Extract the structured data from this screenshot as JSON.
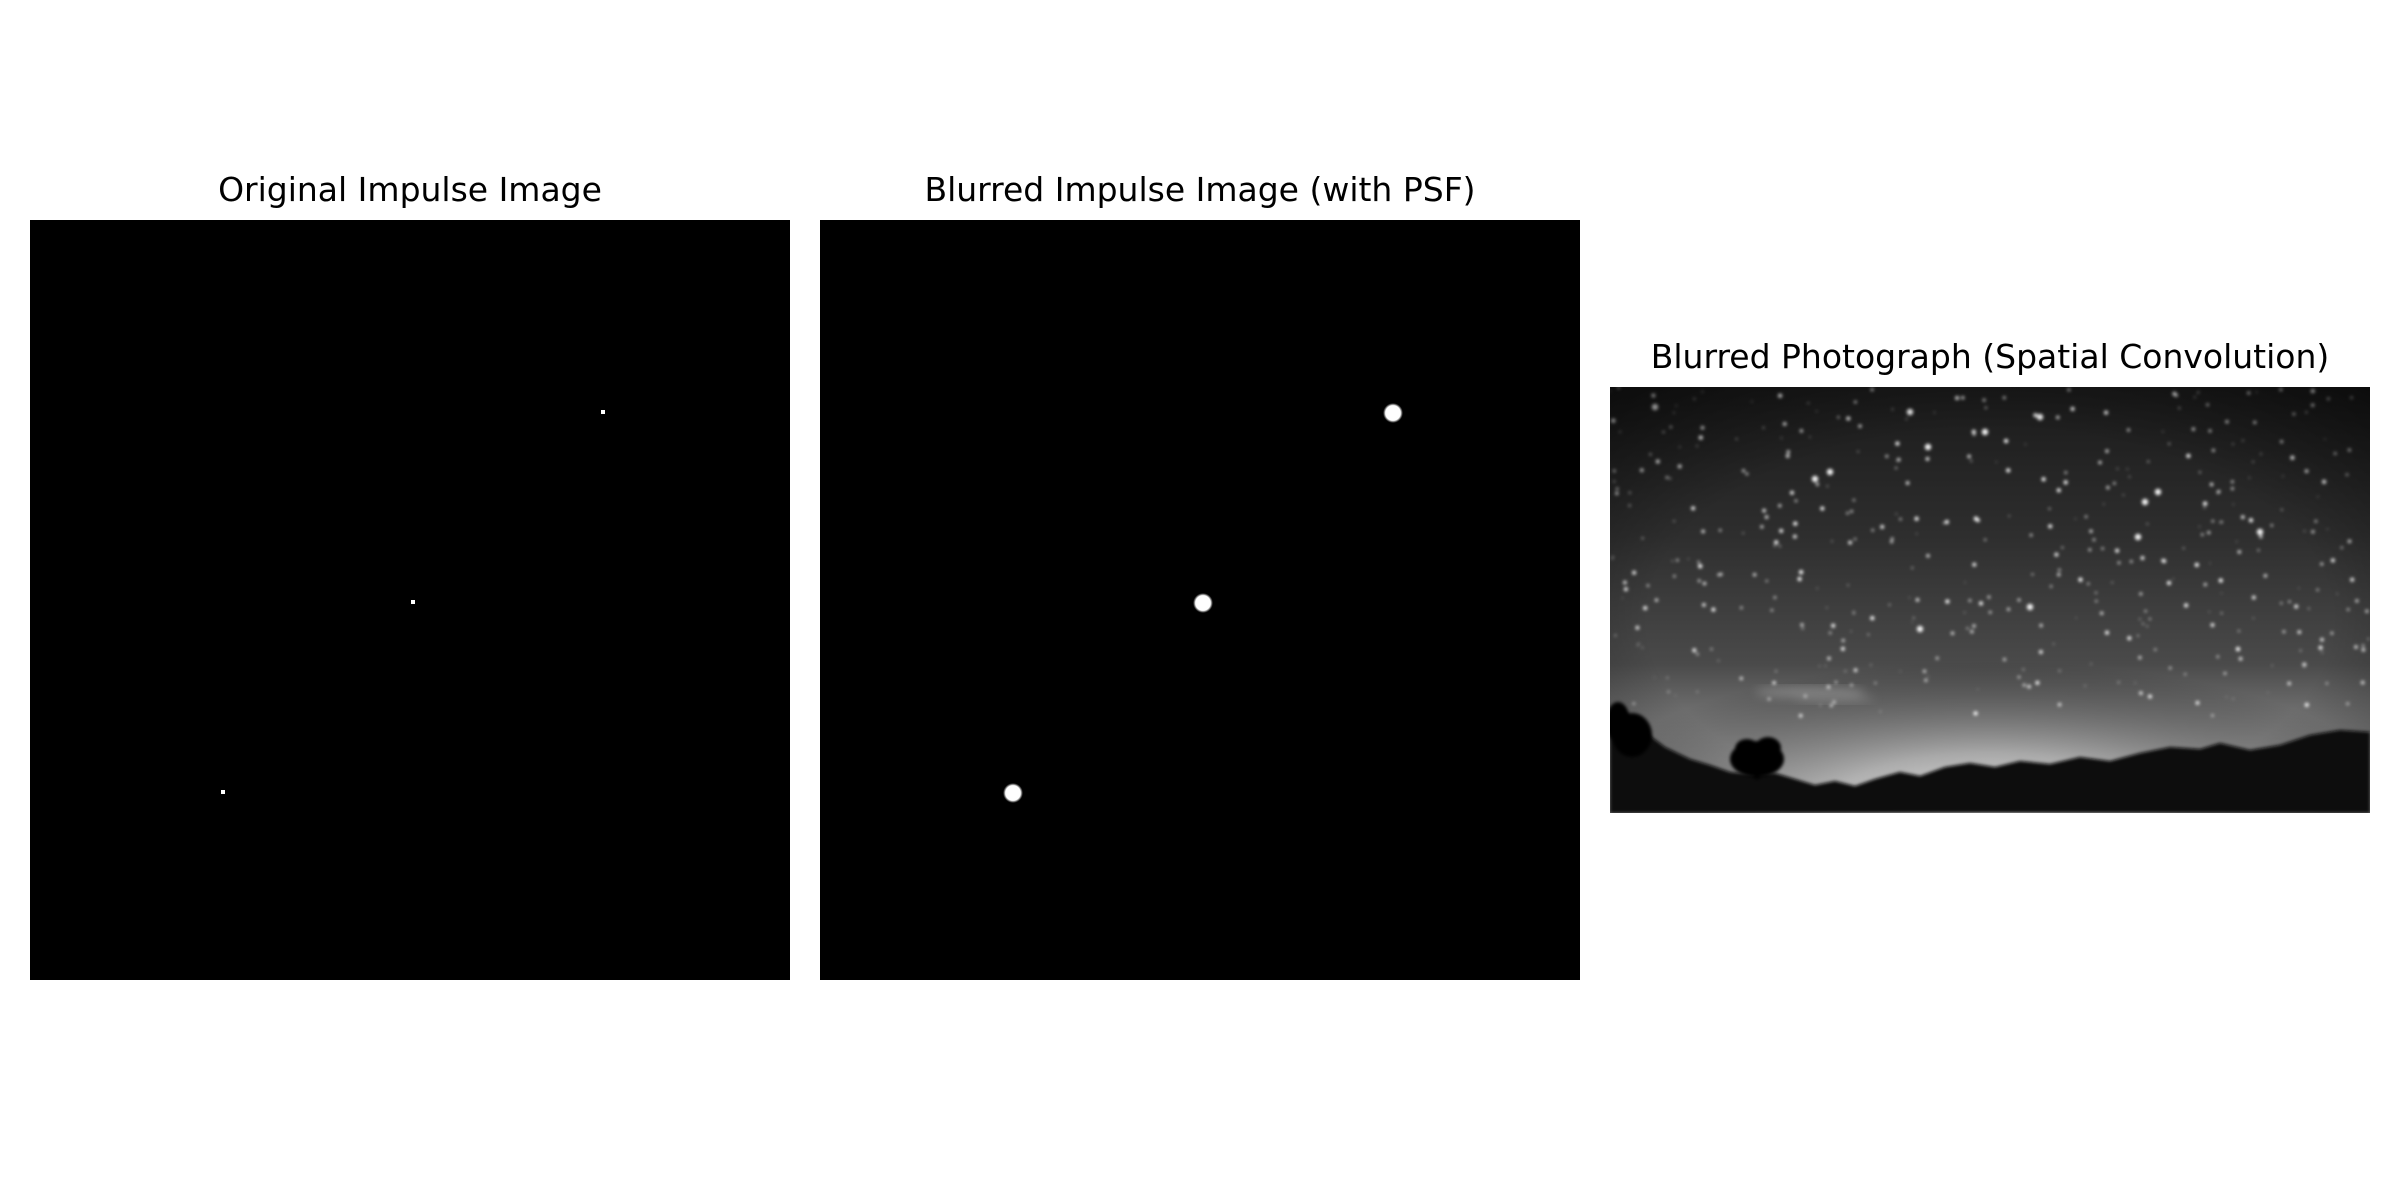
{
  "figure": {
    "panels": [
      {
        "title": "Original Impulse Image",
        "content": "impulse-points"
      },
      {
        "title": "Blurred Impulse Image (with PSF)",
        "content": "blurred-impulse-points"
      },
      {
        "title": "Blurred Photograph (Spatial Convolution)",
        "content": "blurred night-sky photograph, grayscale"
      }
    ]
  },
  "colors": {
    "figure_background": "#ffffff",
    "image_background": "#000000",
    "point_color": "#ffffff"
  }
}
